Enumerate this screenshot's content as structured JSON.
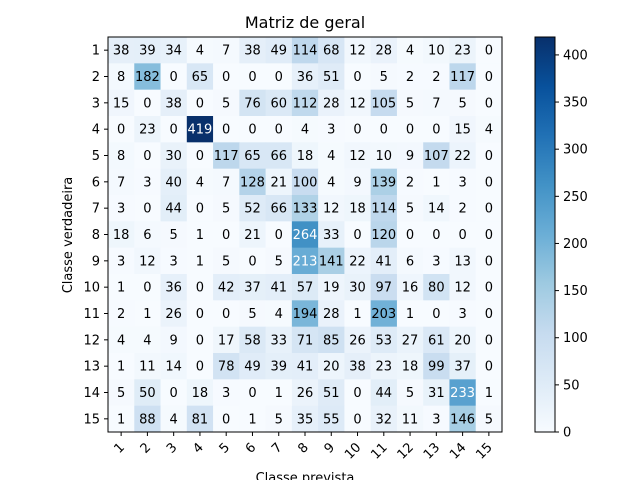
{
  "chart_data": {
    "type": "heatmap",
    "title": "Matriz de geral",
    "xlabel": "Classe prevista",
    "ylabel": "Classe verdadeira",
    "x_categories": [
      "1",
      "2",
      "3",
      "4",
      "5",
      "6",
      "7",
      "8",
      "9",
      "10",
      "11",
      "12",
      "13",
      "14",
      "15"
    ],
    "y_categories": [
      "1",
      "2",
      "3",
      "4",
      "5",
      "6",
      "7",
      "8",
      "9",
      "10",
      "11",
      "12",
      "13",
      "14",
      "15"
    ],
    "matrix": [
      [
        38,
        39,
        34,
        4,
        7,
        38,
        49,
        114,
        68,
        12,
        28,
        4,
        10,
        23,
        0
      ],
      [
        8,
        182,
        0,
        65,
        0,
        0,
        0,
        36,
        51,
        0,
        5,
        2,
        2,
        117,
        0
      ],
      [
        15,
        0,
        38,
        0,
        5,
        76,
        60,
        112,
        28,
        12,
        105,
        5,
        7,
        5,
        0
      ],
      [
        0,
        23,
        0,
        419,
        0,
        0,
        0,
        4,
        3,
        0,
        0,
        0,
        0,
        15,
        4
      ],
      [
        8,
        0,
        30,
        0,
        117,
        65,
        66,
        18,
        4,
        12,
        10,
        9,
        107,
        22,
        0
      ],
      [
        7,
        3,
        40,
        4,
        7,
        128,
        21,
        100,
        4,
        9,
        139,
        2,
        1,
        3,
        0
      ],
      [
        3,
        0,
        44,
        0,
        5,
        52,
        66,
        133,
        12,
        18,
        114,
        5,
        14,
        2,
        0
      ],
      [
        18,
        6,
        5,
        1,
        0,
        21,
        0,
        264,
        33,
        0,
        120,
        0,
        0,
        0,
        0
      ],
      [
        3,
        12,
        3,
        1,
        5,
        0,
        5,
        213,
        141,
        22,
        41,
        6,
        3,
        13,
        0
      ],
      [
        1,
        0,
        36,
        0,
        42,
        37,
        41,
        57,
        19,
        30,
        97,
        16,
        80,
        12,
        0
      ],
      [
        2,
        1,
        26,
        0,
        0,
        5,
        4,
        194,
        28,
        1,
        203,
        1,
        0,
        3,
        0
      ],
      [
        4,
        4,
        9,
        0,
        17,
        58,
        33,
        71,
        85,
        26,
        53,
        27,
        61,
        20,
        0
      ],
      [
        1,
        11,
        14,
        0,
        78,
        49,
        39,
        41,
        20,
        38,
        23,
        18,
        99,
        37,
        0
      ],
      [
        5,
        50,
        0,
        18,
        3,
        0,
        1,
        26,
        51,
        0,
        44,
        5,
        31,
        233,
        1
      ],
      [
        1,
        88,
        4,
        81,
        0,
        1,
        5,
        35,
        55,
        0,
        32,
        11,
        3,
        146,
        5
      ]
    ],
    "colorbar": {
      "colormap": "Blues",
      "vmin": 0,
      "vmax": 419,
      "ticks": [
        0,
        50,
        100,
        150,
        200,
        250,
        300,
        350,
        400
      ]
    },
    "grid": false
  }
}
